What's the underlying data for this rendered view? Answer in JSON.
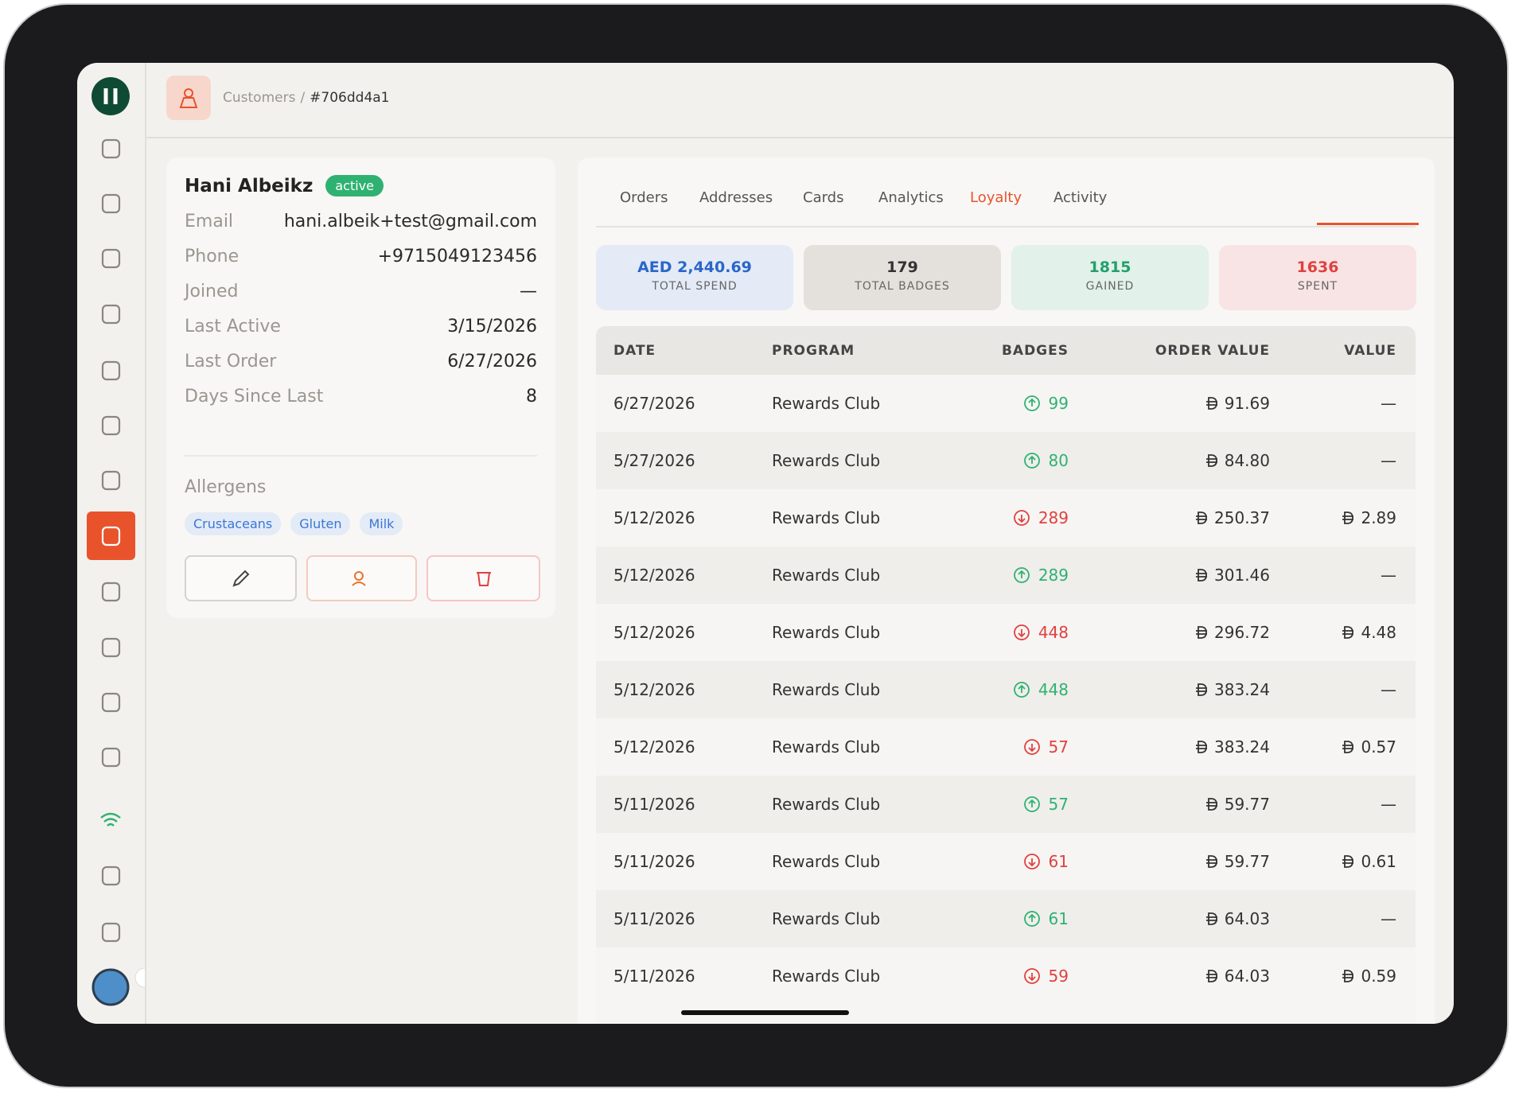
{
  "breadcrumb": {
    "section": "Customers",
    "separator": "/",
    "id": "#706dd4a1"
  },
  "profile": {
    "name": "Hani Albeikz",
    "status": "active",
    "fields": [
      {
        "label": "Email",
        "value": "hani.albeik+test@gmail.com"
      },
      {
        "label": "Phone",
        "value": "+9715049123456"
      },
      {
        "label": "Joined",
        "value": "—"
      },
      {
        "label": "Last Active",
        "value": "3/15/2026"
      },
      {
        "label": "Last Order",
        "value": "6/27/2026"
      },
      {
        "label": "Days Since Last",
        "value": "8"
      }
    ],
    "allergens_title": "Allergens",
    "allergens": [
      "Crustaceans",
      "Gluten",
      "Milk"
    ]
  },
  "tabs": {
    "items": [
      "Orders",
      "Addresses",
      "Cards",
      "Analytics",
      "Loyalty",
      "Activity"
    ],
    "active": 4
  },
  "stats": [
    {
      "value": "AED 2,440.69",
      "label": "TOTAL SPEND",
      "tone": "blue"
    },
    {
      "value": "179",
      "label": "TOTAL BADGES",
      "tone": "gray"
    },
    {
      "value": "1815",
      "label": "GAINED",
      "tone": "green"
    },
    {
      "value": "1636",
      "label": "SPENT",
      "tone": "red"
    }
  ],
  "table": {
    "columns": [
      "DATE",
      "PROGRAM",
      "BADGES",
      "ORDER VALUE",
      "VALUE"
    ],
    "rows": [
      {
        "date": "6/27/2026",
        "program": "Rewards Club",
        "badges": "99",
        "direction": "gain",
        "order_value": "91.69",
        "value": "—"
      },
      {
        "date": "5/27/2026",
        "program": "Rewards Club",
        "badges": "80",
        "direction": "gain",
        "order_value": "84.80",
        "value": "—"
      },
      {
        "date": "5/12/2026",
        "program": "Rewards Club",
        "badges": "289",
        "direction": "spend",
        "order_value": "250.37",
        "value": "2.89"
      },
      {
        "date": "5/12/2026",
        "program": "Rewards Club",
        "badges": "289",
        "direction": "gain",
        "order_value": "301.46",
        "value": "—"
      },
      {
        "date": "5/12/2026",
        "program": "Rewards Club",
        "badges": "448",
        "direction": "spend",
        "order_value": "296.72",
        "value": "4.48"
      },
      {
        "date": "5/12/2026",
        "program": "Rewards Club",
        "badges": "448",
        "direction": "gain",
        "order_value": "383.24",
        "value": "—"
      },
      {
        "date": "5/12/2026",
        "program": "Rewards Club",
        "badges": "57",
        "direction": "spend",
        "order_value": "383.24",
        "value": "0.57"
      },
      {
        "date": "5/11/2026",
        "program": "Rewards Club",
        "badges": "57",
        "direction": "gain",
        "order_value": "59.77",
        "value": "—"
      },
      {
        "date": "5/11/2026",
        "program": "Rewards Club",
        "badges": "61",
        "direction": "spend",
        "order_value": "59.77",
        "value": "0.61"
      },
      {
        "date": "5/11/2026",
        "program": "Rewards Club",
        "badges": "61",
        "direction": "gain",
        "order_value": "64.03",
        "value": "—"
      },
      {
        "date": "5/11/2026",
        "program": "Rewards Club",
        "badges": "59",
        "direction": "spend",
        "order_value": "64.03",
        "value": "0.59"
      }
    ]
  }
}
